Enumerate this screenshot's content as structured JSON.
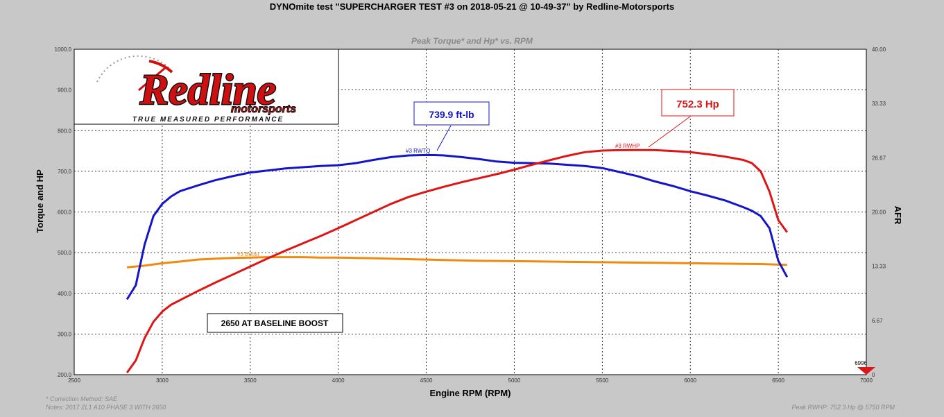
{
  "header": {
    "title": "DYNOmite test \"SUPERCHARGER TEST #3 on 2018-05-21 @ 10-49-37\" by Redline-Motorsports",
    "subtitle": "Peak Torque* and Hp* vs. RPM"
  },
  "logo": {
    "brand": "Redline",
    "sub": "motorsports",
    "tagline": "TRUE MEASURED PERFORMANCE",
    "colors": {
      "red": "#d01010",
      "dark": "#222222"
    }
  },
  "footer": {
    "correction": "* Correction Method: SAE",
    "notes": "Notes: 2017 ZL1 A10 PHASE 3 WITH 2650",
    "peak": "Peak RWHP: 752.3 Hp @ 5750 RPM"
  },
  "annotations": {
    "torque_callout": "739.9 ft-lb",
    "hp_callout": "752.3 Hp",
    "baseline_note": "2650 AT BASELINE BOOST",
    "marker_value": "6996"
  },
  "chart_data": {
    "type": "line",
    "xlabel": "Engine RPM (RPM)",
    "ylabel": "Torque and HP",
    "y2label": "AFR",
    "xlim": [
      2500,
      7000
    ],
    "ylim": [
      200,
      1000
    ],
    "y2lim": [
      0,
      40
    ],
    "x_ticks": [
      "2500",
      "3000",
      "3500",
      "4000",
      "4500",
      "5000",
      "5500",
      "6000",
      "6500",
      "7000"
    ],
    "y_ticks": [
      "200.0",
      "300.0",
      "400.0",
      "500.0",
      "600.0",
      "700.0",
      "800.0",
      "900.0",
      "1000.0"
    ],
    "y2_ticks": [
      "0",
      "6.67",
      "13.33",
      "20.00",
      "26.67",
      "33.33",
      "40.00"
    ],
    "grid": true,
    "series": [
      {
        "name": "#3 RWTQ",
        "color": "#1515c8",
        "x": [
          2800,
          2850,
          2900,
          2950,
          3000,
          3050,
          3100,
          3200,
          3300,
          3400,
          3500,
          3600,
          3700,
          3800,
          3900,
          4000,
          4100,
          4200,
          4300,
          4400,
          4500,
          4550,
          4600,
          4700,
          4800,
          4900,
          5000,
          5100,
          5200,
          5300,
          5400,
          5500,
          5600,
          5700,
          5800,
          5900,
          6000,
          6100,
          6200,
          6300,
          6350,
          6400,
          6450,
          6500,
          6550
        ],
        "y": [
          385,
          420,
          520,
          590,
          620,
          638,
          651,
          665,
          678,
          688,
          697,
          702,
          707,
          710,
          713,
          715,
          720,
          728,
          735,
          739,
          740,
          739.9,
          739,
          735,
          730,
          724,
          721,
          720,
          719,
          716,
          713,
          708,
          698,
          688,
          675,
          664,
          651,
          640,
          628,
          612,
          603,
          590,
          560,
          480,
          440
        ]
      },
      {
        "name": "#3 RWHP",
        "color": "#dd1515",
        "x": [
          2800,
          2850,
          2900,
          2950,
          3000,
          3050,
          3100,
          3200,
          3300,
          3400,
          3500,
          3600,
          3700,
          3800,
          3900,
          4000,
          4100,
          4200,
          4300,
          4400,
          4500,
          4600,
          4700,
          4800,
          4900,
          5000,
          5100,
          5200,
          5300,
          5400,
          5500,
          5600,
          5700,
          5750,
          5800,
          5900,
          6000,
          6100,
          6200,
          6300,
          6350,
          6400,
          6450,
          6500,
          6550
        ],
        "y": [
          205,
          235,
          290,
          330,
          355,
          372,
          383,
          405,
          426,
          446,
          466,
          486,
          505,
          523,
          541,
          560,
          580,
          600,
          620,
          637,
          650,
          662,
          673,
          683,
          693,
          704,
          716,
          727,
          738,
          747,
          751,
          752,
          752.3,
          752.3,
          752,
          750,
          747,
          742,
          736,
          728,
          720,
          700,
          650,
          580,
          550
        ]
      },
      {
        "name": "#3 Boost",
        "color": "#ee8a10",
        "x": [
          2800,
          2900,
          3000,
          3100,
          3200,
          3300,
          3400,
          3500,
          3600,
          3700,
          3800,
          3900,
          4000,
          4200,
          4400,
          4600,
          4800,
          5000,
          5200,
          5400,
          5600,
          5800,
          6000,
          6200,
          6400,
          6550
        ],
        "y": [
          464,
          468,
          474,
          478,
          483,
          485,
          487,
          488,
          489,
          489,
          489,
          488,
          488,
          486,
          484,
          482,
          480,
          479,
          478,
          477,
          476,
          475,
          474,
          473,
          472,
          470
        ]
      }
    ]
  }
}
